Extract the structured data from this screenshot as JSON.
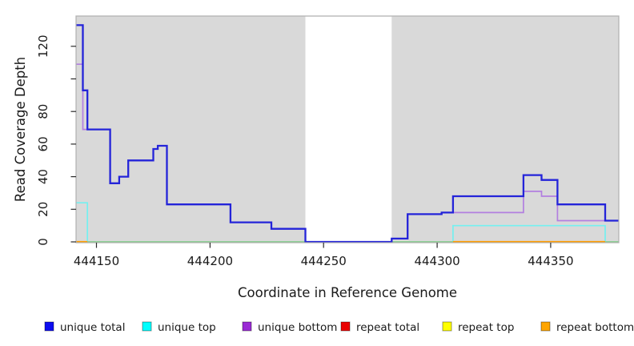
{
  "figure": {
    "plot_bg_color": "#d9d9d9",
    "mask_color": "#ffffff",
    "border_color": "#b0b0b0",
    "tick_color": "#2a2a2a",
    "text_color": "#1a1a1a"
  },
  "chart_data": {
    "type": "line",
    "step": true,
    "title": "",
    "xlabel": "Coordinate in Reference Genome",
    "ylabel": "Read Coverage Depth",
    "x_range": [
      444141,
      444380
    ],
    "y_range": [
      0,
      138.6
    ],
    "grid": false,
    "legend_position": "bottom",
    "x_ticks": [
      {
        "value": 444150,
        "label": "444150"
      },
      {
        "value": 444200,
        "label": "444200"
      },
      {
        "value": 444250,
        "label": "444250"
      },
      {
        "value": 444300,
        "label": "444300"
      },
      {
        "value": 444350,
        "label": "444350"
      }
    ],
    "y_ticks": [
      {
        "value": 0,
        "label": "0"
      },
      {
        "value": 20,
        "label": "20"
      },
      {
        "value": 40,
        "label": "40"
      },
      {
        "value": 60,
        "label": "60"
      },
      {
        "value": 80,
        "label": "80"
      },
      {
        "value": 100,
        "label": ""
      },
      {
        "value": 120,
        "label": "120"
      }
    ],
    "masked_region": {
      "x_from": 444242,
      "x_to": 444280
    },
    "series": [
      {
        "name": "unique total",
        "slug": "unique-total",
        "line_color": "#2424d9",
        "line_width": 2.3,
        "x_end": 444380,
        "steps": [
          [
            444141,
            133
          ],
          [
            444144,
            93
          ],
          [
            444146,
            69
          ],
          [
            444156,
            36
          ],
          [
            444160,
            40
          ],
          [
            444164,
            50
          ],
          [
            444175,
            57
          ],
          [
            444177,
            59
          ],
          [
            444181,
            23
          ],
          [
            444209,
            12
          ],
          [
            444227,
            8
          ],
          [
            444242,
            0
          ],
          [
            444280,
            2
          ],
          [
            444287,
            17
          ],
          [
            444302,
            18
          ],
          [
            444307,
            28
          ],
          [
            444338,
            41
          ],
          [
            444346,
            38
          ],
          [
            444353,
            23
          ],
          [
            444374,
            13
          ]
        ]
      },
      {
        "name": "unique top",
        "slug": "unique-top",
        "line_color": "#74f0f0",
        "line_width": 1.7,
        "x_end": 444380,
        "steps": [
          [
            444141,
            24
          ],
          [
            444146,
            0
          ],
          [
            444307,
            10
          ],
          [
            444374,
            0
          ]
        ]
      },
      {
        "name": "unique bottom",
        "slug": "unique-bottom",
        "line_color": "#b27fe0",
        "line_width": 1.7,
        "x_end": 444380,
        "steps": [
          [
            444141,
            109
          ],
          [
            444144,
            69
          ],
          [
            444156,
            36
          ],
          [
            444160,
            40
          ],
          [
            444164,
            50
          ],
          [
            444175,
            57
          ],
          [
            444177,
            59
          ],
          [
            444181,
            23
          ],
          [
            444209,
            12
          ],
          [
            444227,
            8
          ],
          [
            444242,
            0
          ],
          [
            444280,
            2
          ],
          [
            444287,
            17
          ],
          [
            444302,
            18
          ],
          [
            444338,
            31
          ],
          [
            444346,
            28
          ],
          [
            444353,
            13
          ]
        ]
      },
      {
        "name": "repeat total",
        "slug": "repeat-total",
        "line_color": "#e80000",
        "line_width": 1.4,
        "x_end": 444380,
        "steps": [
          [
            444141,
            0
          ]
        ]
      },
      {
        "name": "repeat top",
        "slug": "repeat-top",
        "line_color": "#8ecf8e",
        "line_width": 1.7,
        "x_end": 444380,
        "steps": [
          [
            444141,
            0
          ]
        ]
      },
      {
        "name": "repeat bottom",
        "slug": "repeat-bottom",
        "line_color": "#ff9d00",
        "line_width": 2.2,
        "x_end": 444380,
        "steps": [
          [
            444141,
            0
          ]
        ],
        "visible_segments": [
          [
            444141,
            444146
          ],
          [
            444307,
            444374
          ]
        ]
      }
    ]
  },
  "legend": {
    "items": [
      {
        "label": "unique total",
        "slug": "unique-total",
        "swatch_color": "#0d0df0"
      },
      {
        "label": "unique top",
        "slug": "unique-top",
        "swatch_color": "#00ffff"
      },
      {
        "label": "unique bottom",
        "slug": "unique-bottom",
        "swatch_color": "#9a2bd4"
      },
      {
        "label": "repeat total",
        "slug": "repeat-total",
        "swatch_color": "#ea0000"
      },
      {
        "label": "repeat top",
        "slug": "repeat-top",
        "swatch_color": "#ffff00"
      },
      {
        "label": "repeat bottom",
        "slug": "repeat-bottom",
        "swatch_color": "#ffa500"
      }
    ]
  }
}
